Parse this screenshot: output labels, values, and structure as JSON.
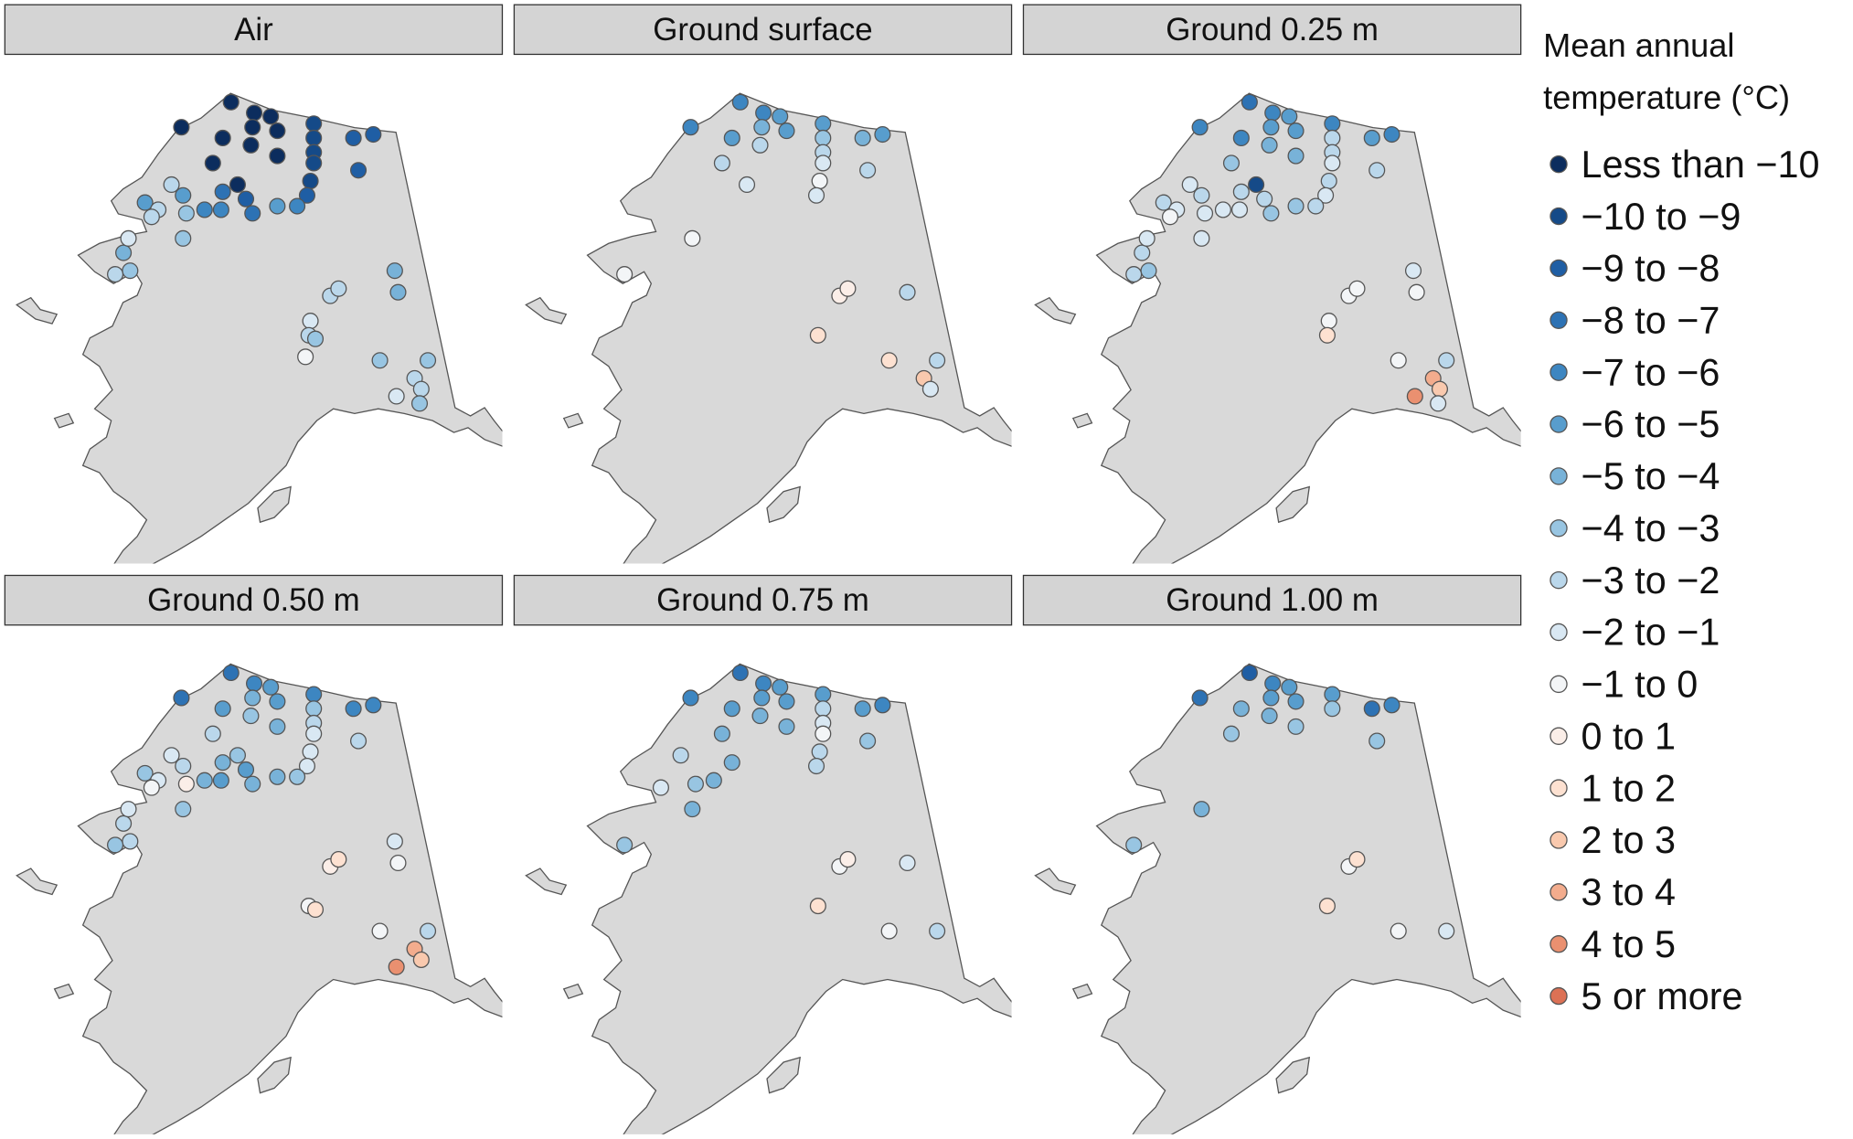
{
  "legend": {
    "title": [
      "Mean annual",
      "temperature (°C)"
    ],
    "items": [
      {
        "label": "Less than −10",
        "color": "#0c2d5e"
      },
      {
        "label": "−10 to −9",
        "color": "#154a88"
      },
      {
        "label": "−9 to −8",
        "color": "#1f5ea4"
      },
      {
        "label": "−8 to −7",
        "color": "#2d72b4"
      },
      {
        "label": "−7 to −6",
        "color": "#3d86c1"
      },
      {
        "label": "−6 to −5",
        "color": "#589dcd"
      },
      {
        "label": "−5 to −4",
        "color": "#78b2d8"
      },
      {
        "label": "−4 to −3",
        "color": "#98c5e2"
      },
      {
        "label": "−3 to −2",
        "color": "#bad7eb"
      },
      {
        "label": "−2 to −1",
        "color": "#d9e8f3"
      },
      {
        "label": "−1 to 0",
        "color": "#f3f5f7"
      },
      {
        "label": "0 to 1",
        "color": "#fbeee8"
      },
      {
        "label": "1 to 2",
        "color": "#fde1d1"
      },
      {
        "label": "2 to 3",
        "color": "#f9c9ae"
      },
      {
        "label": "3 to 4",
        "color": "#f3ac8d"
      },
      {
        "label": "4 to 5",
        "color": "#ea9070"
      },
      {
        "label": "5 or more",
        "color": "#dc7155"
      }
    ]
  },
  "stations": [
    {
      "lon": -156.4,
      "lat": 70.8
    },
    {
      "lon": -159.4,
      "lat": 70.1
    },
    {
      "lon": -156.9,
      "lat": 69.8
    },
    {
      "lon": -155.0,
      "lat": 70.5
    },
    {
      "lon": -154.0,
      "lat": 70.4
    },
    {
      "lon": -155.1,
      "lat": 70.1
    },
    {
      "lon": -153.6,
      "lat": 70.0
    },
    {
      "lon": -155.2,
      "lat": 69.6
    },
    {
      "lon": -153.6,
      "lat": 69.3
    },
    {
      "lon": -157.5,
      "lat": 69.1
    },
    {
      "lon": -156.0,
      "lat": 68.5
    },
    {
      "lon": -151.4,
      "lat": 70.2
    },
    {
      "lon": -151.4,
      "lat": 69.8
    },
    {
      "lon": -151.4,
      "lat": 69.4
    },
    {
      "lon": -151.4,
      "lat": 69.1
    },
    {
      "lon": -151.6,
      "lat": 68.6
    },
    {
      "lon": -151.8,
      "lat": 68.2
    },
    {
      "lon": -149.0,
      "lat": 69.8
    },
    {
      "lon": -147.8,
      "lat": 69.9
    },
    {
      "lon": -148.7,
      "lat": 68.9
    },
    {
      "lon": -156.9,
      "lat": 68.3
    },
    {
      "lon": -158.0,
      "lat": 67.8
    },
    {
      "lon": -157.0,
      "lat": 67.8
    },
    {
      "lon": -155.5,
      "lat": 68.1
    },
    {
      "lon": -155.1,
      "lat": 67.7
    },
    {
      "lon": -153.6,
      "lat": 67.9
    },
    {
      "lon": -152.4,
      "lat": 67.9
    },
    {
      "lon": -159.3,
      "lat": 68.2
    },
    {
      "lon": -160.0,
      "lat": 68.5
    },
    {
      "lon": -161.6,
      "lat": 68.0
    },
    {
      "lon": -160.8,
      "lat": 67.8
    },
    {
      "lon": -161.2,
      "lat": 67.6
    },
    {
      "lon": -159.1,
      "lat": 67.7
    },
    {
      "lon": -162.9,
      "lat": 66.6
    },
    {
      "lon": -162.6,
      "lat": 67.0
    },
    {
      "lon": -162.5,
      "lat": 66.1
    },
    {
      "lon": -163.4,
      "lat": 66.0
    },
    {
      "lon": -159.3,
      "lat": 67.0
    },
    {
      "lon": -146.5,
      "lat": 66.1
    },
    {
      "lon": -146.3,
      "lat": 65.5
    },
    {
      "lon": -150.4,
      "lat": 65.4
    },
    {
      "lon": -149.9,
      "lat": 65.6
    },
    {
      "lon": -151.6,
      "lat": 64.7
    },
    {
      "lon": -151.7,
      "lat": 64.3
    },
    {
      "lon": -151.3,
      "lat": 64.2
    },
    {
      "lon": -151.9,
      "lat": 63.7
    },
    {
      "lon": -147.4,
      "lat": 63.6
    },
    {
      "lon": -144.5,
      "lat": 63.6
    },
    {
      "lon": -145.3,
      "lat": 63.1
    },
    {
      "lon": -144.9,
      "lat": 62.8
    },
    {
      "lon": -146.4,
      "lat": 62.6
    },
    {
      "lon": -145.0,
      "lat": 62.4
    }
  ],
  "panels": [
    {
      "title": "Air",
      "values": [
        0,
        0,
        0,
        0,
        0,
        0,
        0,
        0,
        0,
        0,
        0,
        1,
        1,
        1,
        1,
        1,
        2,
        2,
        2,
        2,
        3,
        4,
        4,
        2,
        3,
        5,
        4,
        5,
        8,
        5,
        8,
        8,
        7,
        6,
        9,
        7,
        8,
        7,
        6,
        6,
        8,
        8,
        9,
        8,
        7,
        10,
        7,
        7,
        8,
        8,
        9,
        7
      ]
    },
    {
      "title": "Ground surface",
      "values": [
        4,
        4,
        5,
        4,
        5,
        6,
        5,
        8,
        null,
        8,
        9,
        5,
        7,
        8,
        9,
        10,
        9,
        6,
        5,
        8,
        null,
        null,
        null,
        null,
        null,
        null,
        null,
        null,
        null,
        null,
        null,
        null,
        null,
        null,
        null,
        null,
        10,
        10,
        null,
        8,
        11,
        11,
        null,
        12,
        null,
        null,
        12,
        8,
        13,
        9,
        null,
        null
      ]
    },
    {
      "title": "Ground 0.25 m",
      "values": [
        3,
        4,
        4,
        4,
        5,
        5,
        5,
        6,
        6,
        7,
        1,
        4,
        8,
        8,
        9,
        8,
        9,
        5,
        4,
        8,
        8,
        9,
        9,
        8,
        7,
        7,
        8,
        8,
        9,
        8,
        9,
        10,
        9,
        8,
        9,
        7,
        8,
        9,
        9,
        10,
        10,
        10,
        10,
        12,
        null,
        null,
        10,
        8,
        14,
        13,
        15,
        9
      ]
    },
    {
      "title": "Ground 0.50 m",
      "values": [
        3,
        3,
        5,
        4,
        5,
        6,
        5,
        7,
        6,
        8,
        7,
        4,
        7,
        8,
        9,
        9,
        9,
        4,
        4,
        8,
        6,
        6,
        5,
        5,
        6,
        6,
        7,
        8,
        9,
        7,
        9,
        10,
        11,
        8,
        9,
        8,
        7,
        7,
        9,
        10,
        11,
        12,
        null,
        10,
        12,
        null,
        10,
        8,
        14,
        13,
        15,
        null
      ]
    },
    {
      "title": "Ground 0.75 m",
      "values": [
        3,
        4,
        5,
        4,
        5,
        5,
        5,
        6,
        6,
        6,
        null,
        5,
        8,
        9,
        10,
        8,
        8,
        5,
        4,
        7,
        6,
        6,
        null,
        null,
        null,
        null,
        null,
        null,
        8,
        null,
        null,
        9,
        7,
        null,
        null,
        null,
        7,
        6,
        null,
        9,
        10,
        11,
        null,
        12,
        null,
        null,
        10,
        8,
        null,
        null,
        null,
        null
      ]
    },
    {
      "title": "Ground 1.00 m",
      "values": [
        2,
        3,
        6,
        4,
        5,
        5,
        5,
        6,
        7,
        7,
        null,
        5,
        7,
        null,
        null,
        null,
        null,
        3,
        4,
        7,
        null,
        null,
        null,
        null,
        null,
        null,
        null,
        null,
        null,
        null,
        null,
        null,
        null,
        null,
        null,
        null,
        7,
        6,
        null,
        null,
        10,
        12,
        null,
        12,
        null,
        null,
        10,
        9,
        null,
        null,
        null,
        null
      ]
    }
  ]
}
